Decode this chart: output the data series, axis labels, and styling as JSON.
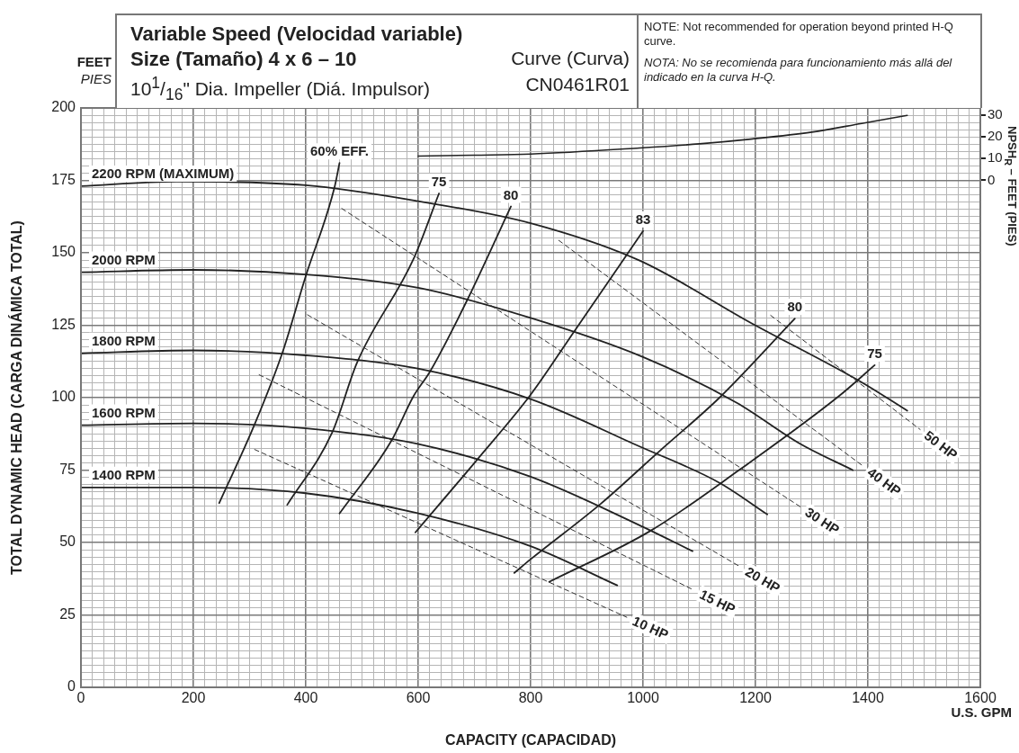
{
  "chart_data": {
    "type": "line",
    "title": "Variable Speed (Velocidad variable)",
    "subtitle": "Size (Tamaño) 4 x 6 – 10",
    "xlabel": "CAPACITY (CAPACIDAD)",
    "ylabel": "TOTAL DYNAMIC HEAD (CARGA DINÁMICA TOTAL)",
    "y2label": "NPSH$_{R}$ – FEET (PIES)",
    "annotations": [
      "Curve (Curva)",
      "CN0461R01",
      "10$^{1}$/$_{16}$\" Dia. Impeller (Diá. Impulsor)",
      "NOTE: Not recommended for operation beyond printed H-Q curve.",
      "NOTA: No se recomienda para funcionamiento más allá del indicado en la curva H-Q.",
      "FEET",
      "PIES",
      "U.S. GPM"
    ],
    "xlim": [
      0,
      1600
    ],
    "ylim": [
      0,
      200
    ],
    "y2lim": [
      -233.33,
      33.33
    ],
    "xticks": [
      0,
      {
        "value": 20,
        "label": null
      },
      {
        "value": 40,
        "label": null
      },
      {
        "value": 60,
        "label": null
      },
      {
        "value": 80,
        "label": null
      },
      {
        "value": 100,
        "label": null
      },
      {
        "value": 120,
        "label": null
      },
      {
        "value": 140,
        "label": null
      },
      {
        "value": 160,
        "label": null
      },
      {
        "value": 180,
        "label": null
      },
      200,
      {
        "value": 220,
        "label": null
      },
      {
        "value": 240,
        "label": null
      },
      {
        "value": 260,
        "label": null
      },
      {
        "value": 280,
        "label": null
      },
      {
        "value": 300,
        "label": null
      },
      {
        "value": 320,
        "label": null
      },
      {
        "value": 340,
        "label": null
      },
      {
        "value": 360,
        "label": null
      },
      {
        "value": 380,
        "label": null
      },
      400,
      {
        "value": 420,
        "label": null
      },
      {
        "value": 440,
        "label": null
      },
      {
        "value": 460,
        "label": null
      },
      {
        "value": 480,
        "label": null
      },
      {
        "value": 500,
        "label": null
      },
      {
        "value": 520,
        "label": null
      },
      {
        "value": 540,
        "label": null
      },
      {
        "value": 560,
        "label": null
      },
      {
        "value": 580,
        "label": null
      },
      600,
      {
        "value": 620,
        "label": null
      },
      {
        "value": 640,
        "label": null
      },
      {
        "value": 660,
        "label": null
      },
      {
        "value": 680,
        "label": null
      },
      {
        "value": 700,
        "label": null
      },
      {
        "value": 720,
        "label": null
      },
      {
        "value": 740,
        "label": null
      },
      {
        "value": 760,
        "label": null
      },
      {
        "value": 780,
        "label": null
      },
      800,
      {
        "value": 820,
        "label": null
      },
      {
        "value": 840,
        "label": null
      },
      {
        "value": 860,
        "label": null
      },
      {
        "value": 880,
        "label": null
      },
      {
        "value": 900,
        "label": null
      },
      {
        "value": 920,
        "label": null
      },
      {
        "value": 940,
        "label": null
      },
      {
        "value": 960,
        "label": null
      },
      {
        "value": 980,
        "label": null
      },
      1000,
      {
        "value": 1020,
        "label": null
      },
      {
        "value": 1040,
        "label": null
      },
      {
        "value": 1060,
        "label": null
      },
      {
        "value": 1080,
        "label": null
      },
      {
        "value": 1100,
        "label": null
      },
      {
        "value": 1120,
        "label": null
      },
      {
        "value": 1140,
        "label": null
      },
      {
        "value": 1160,
        "label": null
      },
      {
        "value": 1180,
        "label": null
      },
      1200,
      {
        "value": 1220,
        "label": null
      },
      {
        "value": 1240,
        "label": null
      },
      {
        "value": 1260,
        "label": null
      },
      {
        "value": 1280,
        "label": null
      },
      {
        "value": 1300,
        "label": null
      },
      {
        "value": 1320,
        "label": null
      },
      {
        "value": 1340,
        "label": null
      },
      {
        "value": 1360,
        "label": null
      },
      {
        "value": 1380,
        "label": null
      },
      1400,
      {
        "value": 1420,
        "label": null
      },
      {
        "value": 1440,
        "label": null
      },
      {
        "value": 1460,
        "label": null
      },
      {
        "value": 1480,
        "label": null
      },
      {
        "value": 1500,
        "label": null
      },
      {
        "value": 1520,
        "label": null
      },
      {
        "value": 1540,
        "label": null
      },
      {
        "value": 1560,
        "label": null
      },
      {
        "value": 1580,
        "label": null
      },
      1600
    ],
    "yticks": [
      0,
      {
        "value": 2.5,
        "label": null
      },
      {
        "value": 5,
        "label": null
      },
      {
        "value": 7.5,
        "label": null
      },
      {
        "value": 10,
        "label": null
      },
      {
        "value": 12.5,
        "label": null
      },
      {
        "value": 15,
        "label": null
      },
      {
        "value": 17.5,
        "label": null
      },
      {
        "value": 20,
        "label": null
      },
      {
        "value": 22.5,
        "label": null
      },
      25,
      {
        "value": 27.5,
        "label": null
      },
      {
        "value": 30,
        "label": null
      },
      {
        "value": 32.5,
        "label": null
      },
      {
        "value": 35,
        "label": null
      },
      {
        "value": 37.5,
        "label": null
      },
      {
        "value": 40,
        "label": null
      },
      {
        "value": 42.5,
        "label": null
      },
      {
        "value": 45,
        "label": null
      },
      {
        "value": 47.5,
        "label": null
      },
      50,
      {
        "value": 52.5,
        "label": null
      },
      {
        "value": 55,
        "label": null
      },
      {
        "value": 57.5,
        "label": null
      },
      {
        "value": 60,
        "label": null
      },
      {
        "value": 62.5,
        "label": null
      },
      {
        "value": 65,
        "label": null
      },
      {
        "value": 67.5,
        "label": null
      },
      {
        "value": 70,
        "label": null
      },
      {
        "value": 72.5,
        "label": null
      },
      75,
      {
        "value": 77.5,
        "label": null
      },
      {
        "value": 80,
        "label": null
      },
      {
        "value": 82.5,
        "label": null
      },
      {
        "value": 85,
        "label": null
      },
      {
        "value": 87.5,
        "label": null
      },
      {
        "value": 90,
        "label": null
      },
      {
        "value": 92.5,
        "label": null
      },
      {
        "value": 95,
        "label": null
      },
      {
        "value": 97.5,
        "label": null
      },
      100,
      {
        "value": 102.5,
        "label": null
      },
      {
        "value": 105,
        "label": null
      },
      {
        "value": 107.5,
        "label": null
      },
      {
        "value": 110,
        "label": null
      },
      {
        "value": 112.5,
        "label": null
      },
      {
        "value": 115,
        "label": null
      },
      {
        "value": 117.5,
        "label": null
      },
      {
        "value": 120,
        "label": null
      },
      {
        "value": 122.5,
        "label": null
      },
      125,
      {
        "value": 127.5,
        "label": null
      },
      {
        "value": 130,
        "label": null
      },
      {
        "value": 132.5,
        "label": null
      },
      {
        "value": 135,
        "label": null
      },
      {
        "value": 137.5,
        "label": null
      },
      {
        "value": 140,
        "label": null
      },
      {
        "value": 142.5,
        "label": null
      },
      {
        "value": 145,
        "label": null
      },
      {
        "value": 147.5,
        "label": null
      },
      150,
      {
        "value": 152.5,
        "label": null
      },
      {
        "value": 155,
        "label": null
      },
      {
        "value": 157.5,
        "label": null
      },
      {
        "value": 160,
        "label": null
      },
      {
        "value": 162.5,
        "label": null
      },
      {
        "value": 165,
        "label": null
      },
      {
        "value": 167.5,
        "label": null
      },
      {
        "value": 170,
        "label": null
      },
      {
        "value": 172.5,
        "label": null
      },
      175,
      {
        "value": 177.5,
        "label": null
      },
      {
        "value": 180,
        "label": null
      },
      {
        "value": 182.5,
        "label": null
      },
      {
        "value": 185,
        "label": null
      },
      {
        "value": 187.5,
        "label": null
      },
      {
        "value": 190,
        "label": null
      },
      {
        "value": 192.5,
        "label": null
      },
      {
        "value": 195,
        "label": null
      },
      {
        "value": 197.5,
        "label": null
      },
      200
    ],
    "y2ticks": [
      0,
      10,
      20,
      30
    ],
    "grid": true,
    "legend": false,
    "marker": "none",
    "series": [
      {
        "name": "2200 RPM (MAXIMUM)",
        "color": "#222222",
        "line_style": "solid",
        "x": [
          0,
          170,
          400,
          597,
          800,
          994,
          1192,
          1389,
          1470
        ],
        "values": [
          173,
          174.6,
          173.3,
          167.9,
          160.2,
          147.3,
          125.8,
          105.3,
          95.5
        ]
      },
      {
        "name": "2000 RPM",
        "color": "#222222",
        "line_style": "solid",
        "x": [
          0,
          200,
          400,
          600,
          800,
          1000,
          1166,
          1280,
          1373
        ],
        "values": [
          143.3,
          144.1,
          142.5,
          137.9,
          127.5,
          114,
          98.3,
          84,
          75
        ]
      },
      {
        "name": "1800 RPM",
        "color": "#222222",
        "line_style": "solid",
        "x": [
          0,
          200,
          400,
          597,
          800,
          992,
          1136,
          1221
        ],
        "values": [
          115.3,
          116.3,
          114.6,
          110.1,
          99.5,
          83.3,
          70.6,
          59.7
        ]
      },
      {
        "name": "1600 RPM",
        "color": "#222222",
        "line_style": "solid",
        "x": [
          0,
          200,
          400,
          597,
          800,
          992,
          1088
        ],
        "values": [
          90.5,
          91.1,
          89.4,
          84.1,
          72.7,
          56.1,
          47
        ]
      },
      {
        "name": "1400 RPM",
        "color": "#222222",
        "line_style": "solid",
        "x": [
          0,
          200,
          400,
          597,
          800,
          954
        ],
        "values": [
          69,
          69,
          67,
          60.2,
          48.7,
          35.2
        ]
      },
      {
        "name": "60% EFF.",
        "color": "#222222",
        "line_style": "solid",
        "x": [
          246,
          309,
          358,
          400,
          451,
          460
        ],
        "values": [
          63.6,
          90.8,
          115.3,
          142,
          172.5,
          181
        ]
      },
      {
        "name": "75",
        "color": "#222222",
        "line_style": "solid",
        "x": [
          367,
          447,
          491,
          592,
          637
        ],
        "values": [
          63,
          88,
          112,
          148,
          170.5
        ]
      },
      {
        "name": "80",
        "color": "#222222",
        "line_style": "solid",
        "x": [
          460,
          552,
          592,
          621,
          688,
          765
        ],
        "values": [
          60,
          85,
          100.6,
          109,
          134,
          166
        ]
      },
      {
        "name": "83",
        "color": "#222222",
        "line_style": "solid",
        "x": [
          595,
          704,
          800,
          878,
          1000
        ],
        "values": [
          53.5,
          78.4,
          101,
          123,
          157.5
        ]
      },
      {
        "name": "80",
        "color": "#222222",
        "line_style": "solid",
        "x": [
          771,
          800,
          925,
          1029,
          1136,
          1270
        ],
        "values": [
          39.5,
          44.2,
          63.4,
          81.5,
          100,
          127.3
        ]
      },
      {
        "name": "75",
        "color": "#222222",
        "line_style": "solid",
        "x": [
          833,
          1013,
          1173,
          1349,
          1412
        ],
        "values": [
          36.4,
          54,
          75.3,
          100.6,
          111.2
        ]
      },
      {
        "name": "10 HP",
        "color": "#333333",
        "line_style": "dashed",
        "x": [
          309,
          971
        ],
        "values": [
          82.1,
          24.2
        ]
      },
      {
        "name": "15 HP",
        "color": "#333333",
        "line_style": "dashed",
        "x": [
          317,
          1091
        ],
        "values": [
          107.9,
          33.5
        ]
      },
      {
        "name": "20 HP",
        "color": "#333333",
        "line_style": "dashed",
        "x": [
          403,
          1173
        ],
        "values": [
          128.6,
          41.6
        ]
      },
      {
        "name": "30 HP",
        "color": "#333333",
        "line_style": "dashed",
        "x": [
          464,
          1280
        ],
        "values": [
          165.3,
          62.3
        ]
      },
      {
        "name": "40 HP",
        "color": "#333333",
        "line_style": "dashed",
        "x": [
          850,
          1392
        ],
        "values": [
          154.3,
          76.3
        ]
      },
      {
        "name": "50 HP",
        "color": "#333333",
        "line_style": "dashed",
        "x": [
          1227,
          1493
        ],
        "values": [
          128.4,
          89
        ]
      },
      {
        "color": "#222222",
        "line_style": "solid",
        "axis": "y2",
        "x": [
          600,
          700,
          800,
          994,
          1100,
          1192,
          1300,
          1389,
          1470
        ],
        "values": [
          11.2,
          11.6,
          12.1,
          14.9,
          16.8,
          19,
          22.2,
          26.2,
          29.9
        ]
      }
    ]
  }
}
